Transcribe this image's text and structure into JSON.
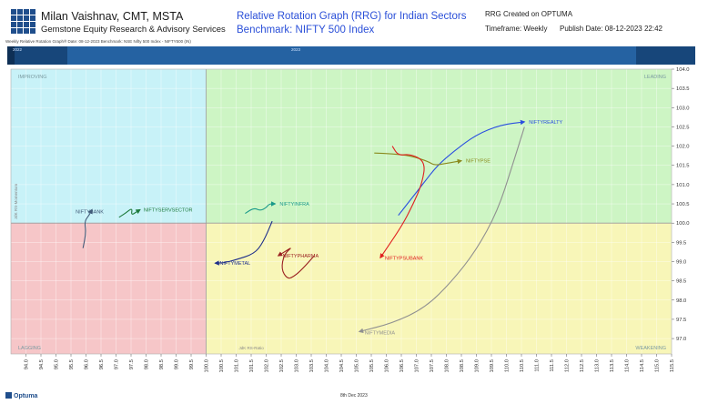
{
  "header": {
    "author": "Milan Vaishnav, CMT, MSTA",
    "firm": "Gemstone Equity Research & Advisory Services",
    "title_line1": "Relative Rotation Graph (RRG) for Indian Sectors",
    "title_line2": "Benchmark: NIFTY 500 Index",
    "created_on": "RRG Created on OPTUMA",
    "timeframe": "Timeframe: Weekly",
    "publish_date": "Publish Date: 08-12-2023 22:42",
    "subline": "Weekly Relative Rotation Graph®   Date: 08-12-2023  Benchmark: NSE Nifty 500 Index - NIFTY500 (IN)"
  },
  "timeline": {
    "left_caption": "2022",
    "mid_caption": "2023"
  },
  "footer": {
    "brand": "Optuma",
    "date": "8th Dec 2023"
  },
  "colors": {
    "improving": "#c8f2f8",
    "leading": "#cdf5c4",
    "weakening": "#f8f6b8",
    "lagging": "#f6c6c8"
  },
  "chart_data": {
    "type": "scatter",
    "subtype": "relative-rotation-graph",
    "xlabel": "JdK RS-Ratio",
    "ylabel": "JdK RS-Momentum",
    "xlim": [
      93.5,
      115.5
    ],
    "ylim": [
      96.6,
      104.0
    ],
    "x_ticks": [
      "94.0",
      "94.5",
      "95.0",
      "95.5",
      "96.0",
      "96.5",
      "97.0",
      "97.5",
      "98.0",
      "98.5",
      "99.0",
      "99.5",
      "100.0",
      "100.5",
      "101.0",
      "101.5",
      "102.0",
      "102.5",
      "103.0",
      "103.5",
      "104.0",
      "104.5",
      "105.0",
      "105.5",
      "106.0",
      "106.5",
      "107.0",
      "107.5",
      "108.0",
      "108.5",
      "109.0",
      "109.5",
      "110.0",
      "110.5",
      "111.0",
      "111.5",
      "112.0",
      "112.5",
      "113.0",
      "113.5",
      "114.0",
      "114.5",
      "115.0",
      "115.5"
    ],
    "y_ticks": [
      "104.0",
      "103.5",
      "103.0",
      "102.5",
      "102.0",
      "101.5",
      "101.0",
      "100.5",
      "100.0",
      "99.5",
      "99.0",
      "98.5",
      "98.0",
      "97.5",
      "97.0"
    ],
    "quadrants": {
      "top_left": "IMPROVING",
      "top_right": "LEADING",
      "bottom_right": "WEAKENING",
      "bottom_left": "LAGGING"
    },
    "series": [
      {
        "name": "NIFTYREALTY",
        "color": "#2a4fe0",
        "points": [
          [
            106.4,
            100.2
          ],
          [
            106.7,
            100.5
          ],
          [
            107.2,
            101.0
          ],
          [
            107.7,
            101.5
          ],
          [
            108.3,
            101.9
          ],
          [
            109.0,
            102.3
          ],
          [
            109.8,
            102.55
          ],
          [
            110.6,
            102.63
          ]
        ]
      },
      {
        "name": "NIFTYPSE",
        "color": "#8a8a1e",
        "points": [
          [
            105.6,
            101.82
          ],
          [
            106.2,
            101.8
          ],
          [
            106.8,
            101.75
          ],
          [
            107.4,
            101.6
          ],
          [
            107.6,
            101.5
          ],
          [
            108.0,
            101.55
          ],
          [
            108.5,
            101.62
          ]
        ]
      },
      {
        "name": "NIFTYPSUBANK",
        "color": "#e02020",
        "points": [
          [
            106.2,
            102.0
          ],
          [
            106.4,
            101.75
          ],
          [
            106.8,
            101.8
          ],
          [
            107.3,
            101.6
          ],
          [
            107.2,
            101.05
          ],
          [
            106.9,
            100.5
          ],
          [
            106.5,
            99.9
          ],
          [
            105.8,
            99.1
          ]
        ]
      },
      {
        "name": "NIFTYMEDIA",
        "color": "#909090",
        "points": [
          [
            110.6,
            102.5
          ],
          [
            110.2,
            101.5
          ],
          [
            109.7,
            100.3
          ],
          [
            109.0,
            99.3
          ],
          [
            108.2,
            98.5
          ],
          [
            107.3,
            97.8
          ],
          [
            106.2,
            97.4
          ],
          [
            105.1,
            97.18
          ]
        ]
      },
      {
        "name": "NIFTYINFRA",
        "color": "#1a9a8a",
        "points": [
          [
            101.3,
            100.25
          ],
          [
            101.6,
            100.4
          ],
          [
            101.8,
            100.32
          ],
          [
            102.0,
            100.4
          ],
          [
            102.1,
            100.5
          ],
          [
            102.3,
            100.5
          ]
        ]
      },
      {
        "name": "NIFTYPHARMA",
        "color": "#9a2020",
        "points": [
          [
            103.6,
            99.15
          ],
          [
            103.2,
            98.8
          ],
          [
            102.9,
            98.6
          ],
          [
            102.7,
            98.55
          ],
          [
            102.5,
            98.8
          ],
          [
            102.6,
            99.2
          ],
          [
            102.9,
            99.4
          ],
          [
            102.4,
            99.15
          ]
        ]
      },
      {
        "name": "NIFTYMETAL",
        "color": "#1e2f8a",
        "points": [
          [
            102.2,
            100.05
          ],
          [
            101.9,
            99.5
          ],
          [
            101.6,
            99.2
          ],
          [
            101.0,
            99.05
          ],
          [
            100.6,
            98.97
          ],
          [
            100.3,
            98.96
          ]
        ]
      },
      {
        "name": "NIFTYSERVSECTOR",
        "color": "#1e7a3c",
        "points": [
          [
            97.1,
            100.15
          ],
          [
            97.3,
            100.25
          ],
          [
            97.55,
            100.4
          ],
          [
            97.5,
            100.2
          ],
          [
            97.7,
            100.3
          ],
          [
            97.8,
            100.35
          ]
        ]
      },
      {
        "name": "NIFTYBANK",
        "color": "#405a78",
        "points": [
          [
            95.9,
            99.35
          ],
          [
            96.0,
            99.75
          ],
          [
            95.95,
            100.05
          ],
          [
            96.1,
            100.2
          ],
          [
            96.2,
            100.35
          ]
        ]
      }
    ]
  }
}
